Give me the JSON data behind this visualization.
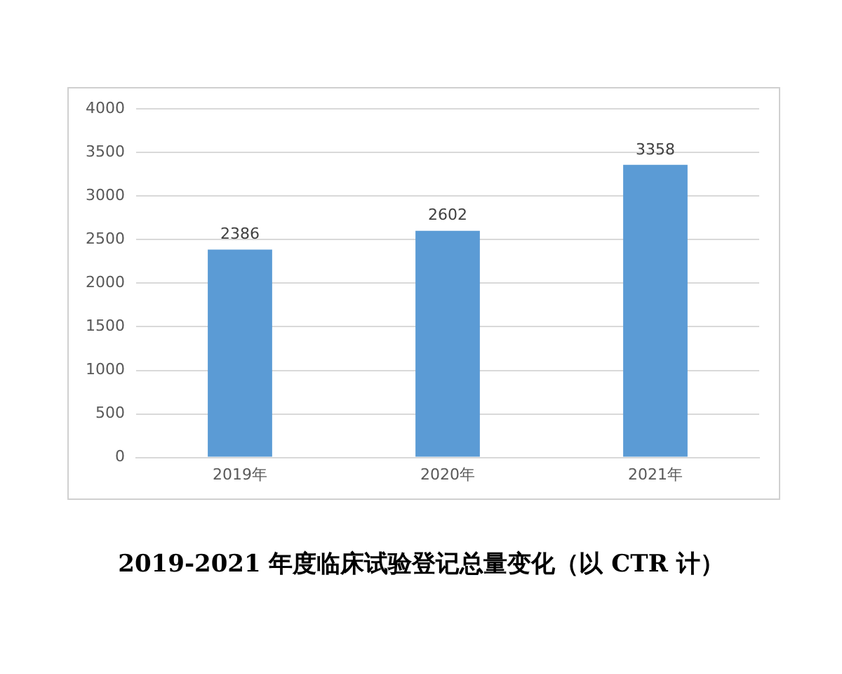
{
  "chart_data": {
    "type": "bar",
    "title": "2019-2021 年度临床试验登记总量变化（以 CTR 计）",
    "categories": [
      "2019年",
      "2020年",
      "2021年"
    ],
    "values": [
      2386,
      2602,
      3358
    ],
    "color": "#5b9bd5",
    "ylim": [
      0,
      4000
    ],
    "yticks": [
      0,
      500,
      1000,
      1500,
      2000,
      2500,
      3000,
      3500,
      4000
    ],
    "grid": "y",
    "data_labels": true
  }
}
